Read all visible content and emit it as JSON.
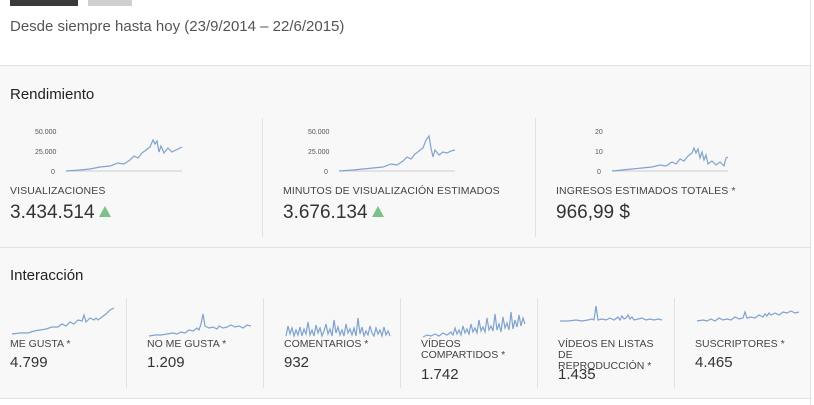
{
  "header": {
    "date_range": "Desde siempre hasta hoy (23/9/2014 – 22/6/2015)"
  },
  "rendimiento": {
    "title": "Rendimiento",
    "metrics": [
      {
        "label": "VISUALIZACIONES",
        "value": "3.434.514",
        "trend": "up",
        "axis_ticks": [
          "50.000",
          "25.000",
          "0"
        ]
      },
      {
        "label": "MINUTOS DE VISUALIZACIÓN ESTIMADOS",
        "value": "3.676.134",
        "trend": "up",
        "axis_ticks": [
          "50.000",
          "25.000",
          "0"
        ]
      },
      {
        "label": "INGRESOS ESTIMADOS TOTALES *",
        "value": "966,99 $",
        "trend": "none",
        "axis_ticks": [
          "20",
          "10",
          "0"
        ]
      }
    ]
  },
  "interaccion": {
    "title": "Interacción",
    "metrics": [
      {
        "label_lines": [
          "ME GUSTA *"
        ],
        "value": "4.799"
      },
      {
        "label_lines": [
          "NO ME GUSTA *"
        ],
        "value": "1.209"
      },
      {
        "label_lines": [
          "COMENTARIOS *"
        ],
        "value": "932"
      },
      {
        "label_lines": [
          "VÍDEOS",
          "COMPARTIDOS *"
        ],
        "value": "1.742"
      },
      {
        "label_lines": [
          "VÍDEOS EN LISTAS DE",
          "REPRODUCCIÓN *"
        ],
        "value": "1.435"
      },
      {
        "label_lines": [
          "SUSCRIPTORES *"
        ],
        "value": "4.465"
      }
    ]
  },
  "colors": {
    "sparkline": "#7fa3cf",
    "trend_up": "#7cc08a"
  },
  "icons": {
    "trend_up": "triangle-up-icon"
  }
}
